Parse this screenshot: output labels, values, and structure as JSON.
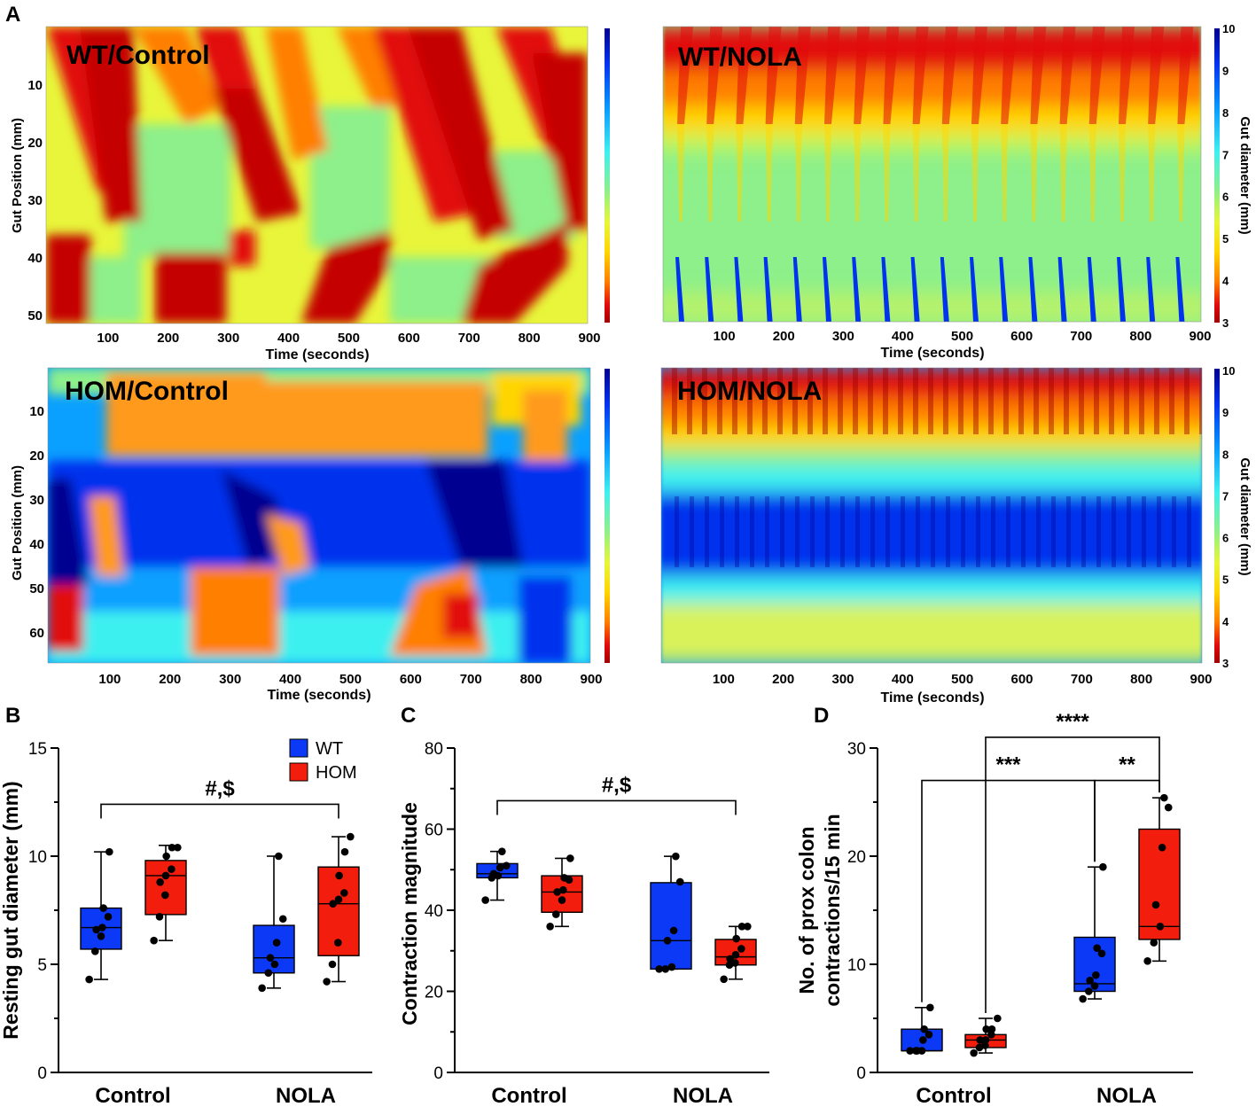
{
  "figure": {
    "panel_letters": {
      "A": "A",
      "B": "B",
      "C": "C",
      "D": "D"
    }
  },
  "colors": {
    "wt": "#0b39f5",
    "hom": "#f21d0c",
    "colormap": [
      "#a10000",
      "#e20b0b",
      "#ff7f00",
      "#ffd500",
      "#e8f53a",
      "#8df08a",
      "#3ef0f0",
      "#0aa0ff",
      "#0033ee",
      "#000090"
    ]
  },
  "heatmaps": [
    {
      "id": "wt-control",
      "label": "WT/Control",
      "ylabel": "Gut Position (mm)",
      "xlabel": "Time (seconds)",
      "xticks": [
        "100",
        "200",
        "300",
        "400",
        "500",
        "600",
        "700",
        "800",
        "900"
      ],
      "yticks": [
        "10",
        "20",
        "30",
        "40",
        "50"
      ],
      "pattern": "wt-control"
    },
    {
      "id": "wt-nola",
      "label": "WT/NOLA",
      "xlabel": "Time (seconds)",
      "xticks": [
        "100",
        "200",
        "300",
        "400",
        "500",
        "600",
        "700",
        "800",
        "900"
      ],
      "colorbar_label": "Gut diameter (mm)",
      "colorbar_ticks": [
        "10",
        "9",
        "8",
        "7",
        "6",
        "5",
        "4",
        "3"
      ],
      "pattern": "wt-nola"
    },
    {
      "id": "hom-control",
      "label": "HOM/Control",
      "ylabel": "Gut Position (mm)",
      "xlabel": "Time (seconds)",
      "xticks": [
        "100",
        "200",
        "300",
        "400",
        "500",
        "600",
        "700",
        "800",
        "900"
      ],
      "yticks": [
        "10",
        "20",
        "30",
        "40",
        "50",
        "60"
      ],
      "pattern": "hom-control"
    },
    {
      "id": "hom-nola",
      "label": "HOM/NOLA",
      "xlabel": "Time (seconds)",
      "xticks": [
        "100",
        "200",
        "300",
        "400",
        "500",
        "600",
        "700",
        "800",
        "900"
      ],
      "colorbar_label": "Gut diameter (mm)",
      "colorbar_ticks": [
        "10",
        "9",
        "8",
        "7",
        "6",
        "5",
        "4",
        "3"
      ],
      "pattern": "hom-nola"
    }
  ],
  "chart_data": [
    {
      "panel": "B",
      "type": "box",
      "ylabel": "Resting gut diameter (mm)",
      "categories": [
        "Control",
        "NOLA"
      ],
      "ylim": [
        0,
        15
      ],
      "yticks": [
        "0",
        "5",
        "10",
        "15"
      ],
      "legend": [
        {
          "name": "WT",
          "color": "#0b39f5"
        },
        {
          "name": "HOM",
          "color": "#f21d0c"
        }
      ],
      "series": [
        {
          "name": "WT",
          "boxes": [
            {
              "category": "Control",
              "min": 4.3,
              "q1": 5.7,
              "median": 6.7,
              "q3": 7.6,
              "max": 10.2,
              "points": [
                4.3,
                5.6,
                6.3,
                6.6,
                6.7,
                7.2,
                7.6,
                10.2
              ]
            },
            {
              "category": "NOLA",
              "min": 3.9,
              "q1": 4.6,
              "median": 5.3,
              "q3": 6.8,
              "max": 10.0,
              "points": [
                3.9,
                4.6,
                5.0,
                5.3,
                6.0,
                7.1,
                10.0
              ]
            }
          ]
        },
        {
          "name": "HOM",
          "boxes": [
            {
              "category": "Control",
              "min": 6.1,
              "q1": 7.3,
              "median": 9.1,
              "q3": 9.8,
              "max": 10.5,
              "points": [
                6.1,
                7.2,
                8.2,
                8.8,
                9.1,
                9.4,
                10.0,
                10.4,
                10.4
              ]
            },
            {
              "category": "NOLA",
              "min": 4.2,
              "q1": 5.4,
              "median": 7.8,
              "q3": 9.5,
              "max": 10.9,
              "points": [
                4.2,
                5.0,
                6.0,
                7.8,
                8.0,
                8.3,
                9.1,
                10.2,
                10.9
              ]
            }
          ]
        }
      ],
      "annotations": [
        {
          "text": "#,$",
          "from": [
            "Control",
            "WT"
          ],
          "to": [
            "NOLA",
            "HOM"
          ],
          "level": 12.4
        }
      ]
    },
    {
      "panel": "C",
      "type": "box",
      "ylabel": "Contraction magnitude",
      "categories": [
        "Control",
        "NOLA"
      ],
      "ylim": [
        0,
        80
      ],
      "yticks": [
        "0",
        "20",
        "40",
        "60",
        "80"
      ],
      "series": [
        {
          "name": "WT",
          "boxes": [
            {
              "category": "Control",
              "min": 42.5,
              "q1": 48.0,
              "median": 49.0,
              "q3": 51.5,
              "max": 54.5,
              "points": [
                42.5,
                48.0,
                48.5,
                49.0,
                50.5,
                51.0,
                54.5
              ]
            },
            {
              "category": "NOLA",
              "min": 25.5,
              "q1": 25.5,
              "median": 32.5,
              "q3": 46.8,
              "max": 53.3,
              "points": [
                25.5,
                25.5,
                26.0,
                32.5,
                35.0,
                47.0,
                53.3
              ]
            }
          ]
        },
        {
          "name": "HOM",
          "boxes": [
            {
              "category": "Control",
              "min": 36.0,
              "q1": 39.5,
              "median": 44.5,
              "q3": 48.5,
              "max": 52.8,
              "points": [
                36.0,
                39.0,
                42.5,
                44.5,
                45.0,
                47.5,
                48.0,
                52.8
              ]
            },
            {
              "category": "NOLA",
              "min": 23.0,
              "q1": 26.5,
              "median": 28.5,
              "q3": 32.8,
              "max": 36.0,
              "points": [
                23.0,
                26.5,
                27.0,
                28.0,
                29.0,
                30.5,
                33.0,
                36.0,
                36.0
              ]
            }
          ]
        }
      ],
      "annotations": [
        {
          "text": "#,$",
          "from": [
            "Control",
            "WT"
          ],
          "to": [
            "NOLA",
            "HOM"
          ],
          "level": 67
        }
      ]
    },
    {
      "panel": "D",
      "type": "box",
      "ylabel": [
        "No. of prox colon",
        "contractions/15 min"
      ],
      "categories": [
        "Control",
        "NOLA"
      ],
      "ylim": [
        0,
        30
      ],
      "yticks": [
        "0",
        "10",
        "20",
        "30"
      ],
      "series": [
        {
          "name": "WT",
          "boxes": [
            {
              "category": "Control",
              "min": 2.0,
              "q1": 2.0,
              "median": 2.0,
              "q3": 4.0,
              "max": 6.0,
              "points": [
                2.0,
                2.0,
                2.0,
                2.0,
                3.0,
                3.5,
                4.0,
                6.0
              ]
            },
            {
              "category": "NOLA",
              "min": 6.8,
              "q1": 7.5,
              "median": 8.2,
              "q3": 12.5,
              "max": 19.0,
              "points": [
                6.8,
                7.5,
                8.0,
                8.5,
                9.0,
                11.0,
                11.5,
                19.0
              ]
            }
          ]
        },
        {
          "name": "HOM",
          "boxes": [
            {
              "category": "Control",
              "min": 1.8,
              "q1": 2.3,
              "median": 3.0,
              "q3": 3.5,
              "max": 5.0,
              "points": [
                1.8,
                2.3,
                2.5,
                3.0,
                3.0,
                3.5,
                4.0,
                4.0,
                5.0
              ]
            },
            {
              "category": "NOLA",
              "min": 10.3,
              "q1": 12.3,
              "median": 13.5,
              "q3": 22.5,
              "max": 25.4,
              "points": [
                10.3,
                12.0,
                13.5,
                15.5,
                20.8,
                24.5,
                25.4
              ]
            }
          ]
        }
      ],
      "annotations": [
        {
          "text": "***",
          "from": [
            "Control",
            "WT"
          ],
          "to": [
            "NOLA",
            "WT"
          ],
          "level": 27.0
        },
        {
          "text": "**",
          "from": [
            "NOLA",
            "WT"
          ],
          "to": [
            "NOLA",
            "HOM"
          ],
          "level": 27.0
        },
        {
          "text": "****",
          "from": [
            "Control",
            "HOM"
          ],
          "to": [
            "NOLA",
            "HOM"
          ],
          "level": 31.0
        }
      ]
    }
  ]
}
